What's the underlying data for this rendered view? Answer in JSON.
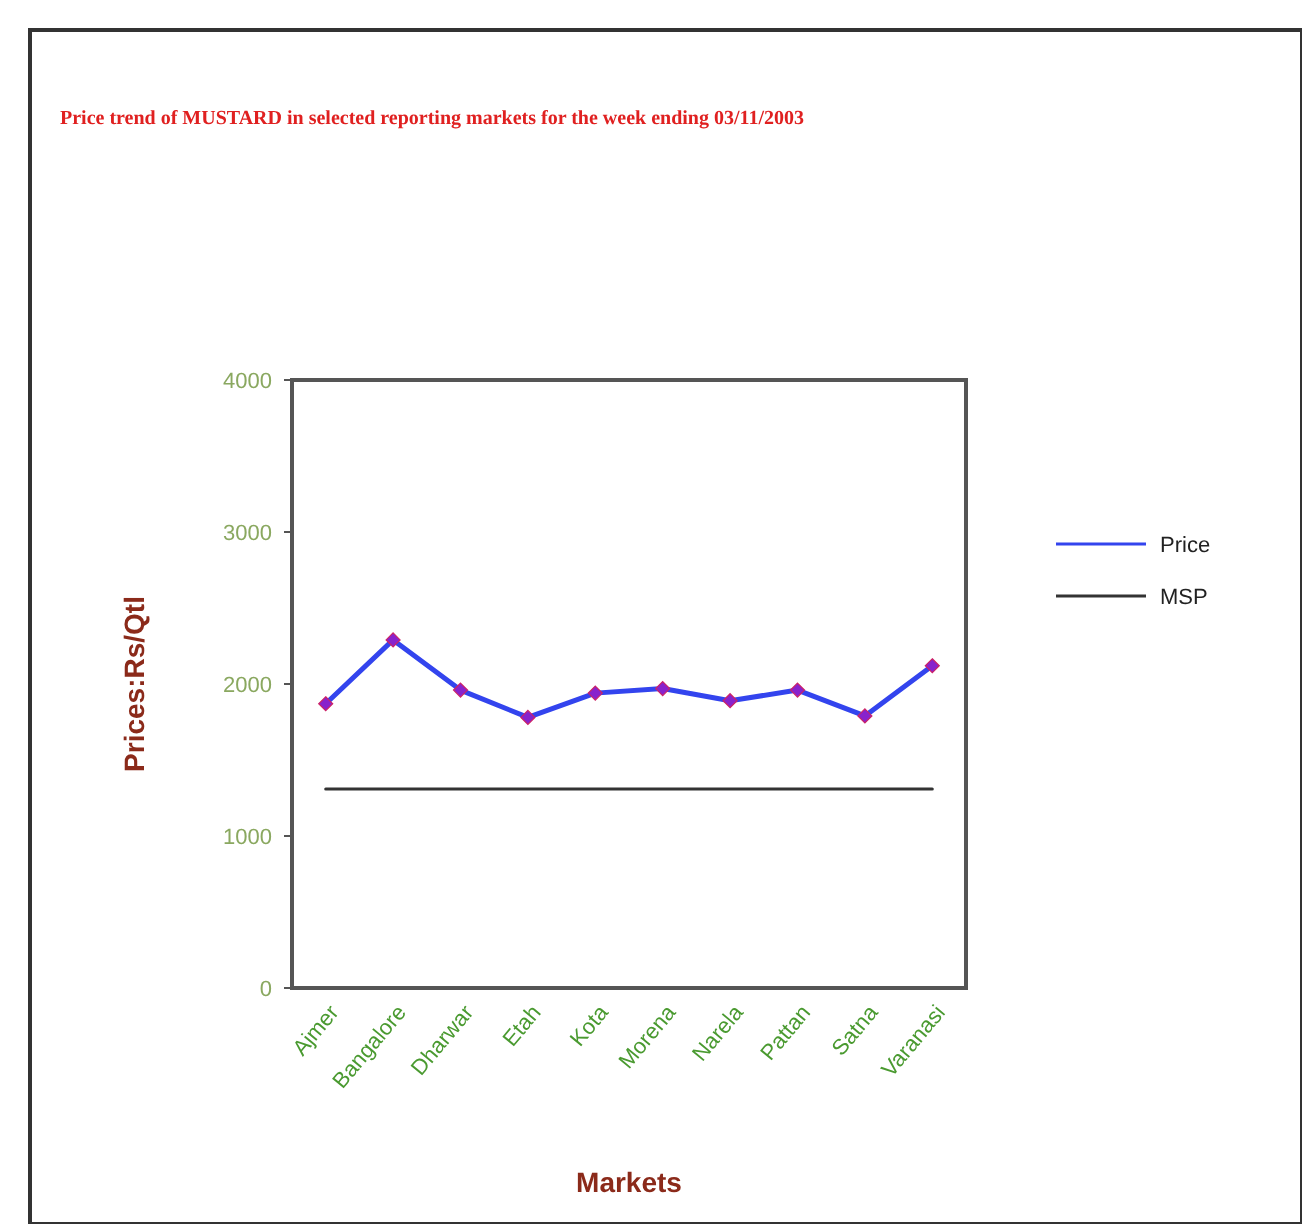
{
  "chart_data": {
    "type": "line",
    "title": "Price trend of MUSTARD in selected reporting markets for the week ending 03/11/2003",
    "xlabel": "Markets",
    "ylabel": "Prices:Rs/Qtl",
    "categories": [
      "Ajmer",
      "Bangalore",
      "Dharwar",
      "Etah",
      "Kota",
      "Morena",
      "Narela",
      "Pattan",
      "Satna",
      "Varanasi"
    ],
    "series": [
      {
        "name": "Price",
        "color": "#3344ee",
        "marker": "diamond",
        "values": [
          1870,
          2290,
          1960,
          1780,
          1940,
          1970,
          1890,
          1960,
          1790,
          2120
        ]
      },
      {
        "name": "MSP",
        "color": "#333333",
        "marker": "none",
        "values": [
          1310,
          1310,
          1310,
          1310,
          1310,
          1310,
          1310,
          1310,
          1310,
          1310
        ]
      }
    ],
    "ylim": [
      0,
      4000
    ],
    "yticks": [
      0,
      1000,
      2000,
      3000,
      4000
    ],
    "grid": false,
    "legend": "right",
    "line_style": "solid"
  }
}
